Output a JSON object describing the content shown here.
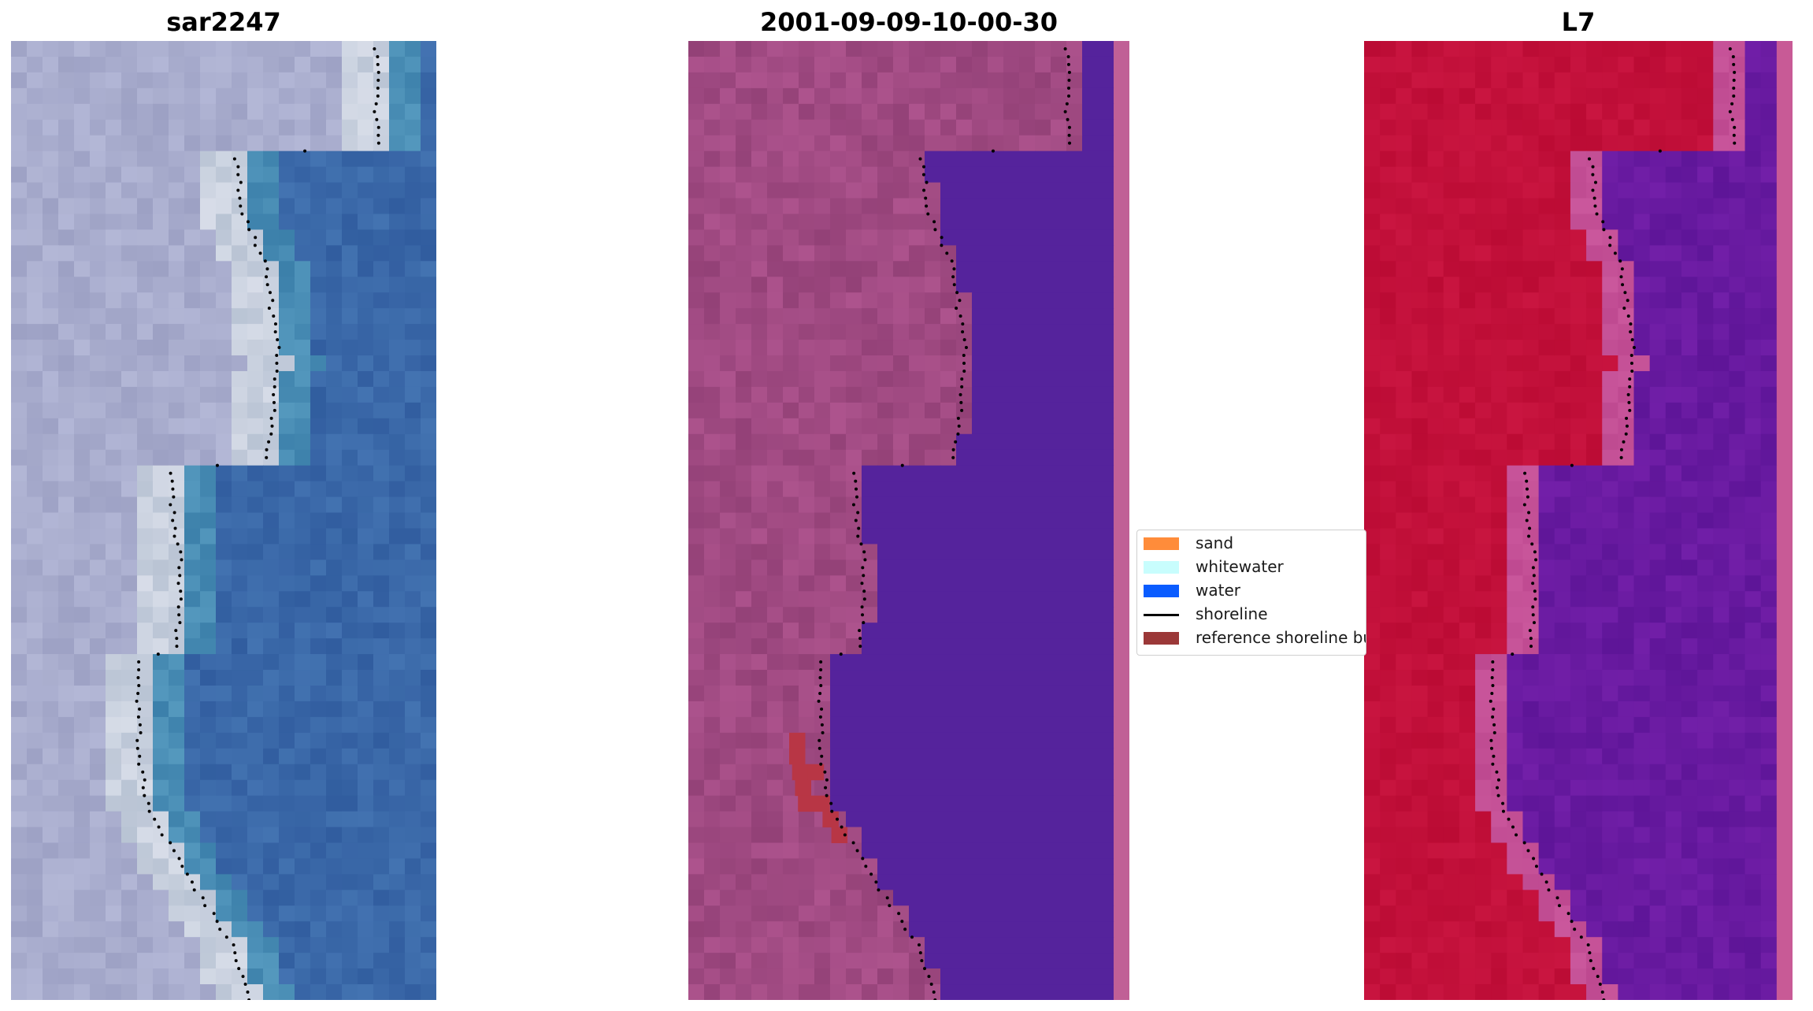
{
  "panels": [
    {
      "title": "sar2247",
      "scheme": "rgb",
      "image": "true-colour satellite image with shoreline overlay"
    },
    {
      "title": "2001-09-09-10-00-30",
      "scheme": "classified",
      "image": "classified image with water mask, reference shoreline buffer and shoreline overlay"
    },
    {
      "title": "L7",
      "scheme": "mndwi",
      "image": "MNDWI index image with shoreline overlay"
    }
  ],
  "legend": {
    "items": [
      {
        "label": "sand",
        "color": "#ff8c3a",
        "kind": "patch"
      },
      {
        "label": "whitewater",
        "color": "#c8fdfd",
        "kind": "patch"
      },
      {
        "label": "water",
        "color": "#0a5cff",
        "kind": "patch"
      },
      {
        "label": "shoreline",
        "color": "#000000",
        "kind": "line"
      },
      {
        "label": "reference shoreline buffer",
        "color": "#9b3838",
        "kind": "patch"
      }
    ]
  },
  "colors": {
    "water_class": "#55239c",
    "land_class": "#a14e86",
    "edge_strip": "#c06096",
    "buffer_patch": "#b83645",
    "mndwi_land": "#c2103a",
    "mndwi_water": "#6a1aa8",
    "rgb_water": "#3a6aa8",
    "rgb_land": "#a9afcc",
    "shoreline": "#000000"
  }
}
